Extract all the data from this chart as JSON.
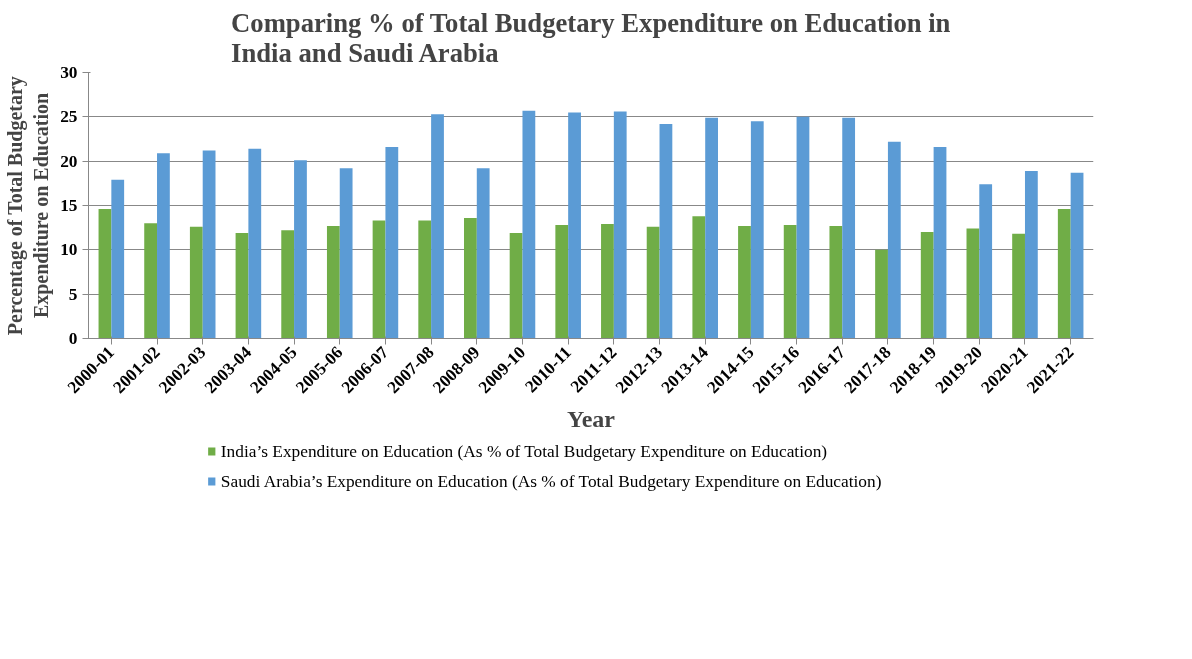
{
  "chart_data": {
    "type": "bar",
    "title": "Comparing % of Total Budgetary Expenditure on Education in India and Saudi Arabia",
    "xlabel": "Year",
    "ylabel": "Percentage of Total Budgetary Expenditure on Education",
    "categories": [
      "2000-01",
      "2001-02",
      "2002-03",
      "2003-04",
      "2004-05",
      "2005-06",
      "2006-07",
      "2007-08",
      "2008-09",
      "2009-10",
      "2010-11",
      "2011-12",
      "2012-13",
      "2013-14",
      "2014-15",
      "2015-16",
      "2016-17",
      "2017-18",
      "2018-19",
      "2019-20",
      "2020-21",
      "2021-22"
    ],
    "series": [
      {
        "name": "India’s Expenditure on Education (As % of Total Budgetary Expenditure on Education)",
        "color": "#70ad47",
        "values": [
          14.6,
          13.0,
          12.6,
          11.9,
          12.2,
          12.7,
          13.3,
          13.3,
          13.6,
          11.9,
          12.8,
          12.9,
          12.6,
          13.8,
          12.7,
          12.8,
          12.7,
          10.0,
          12.0,
          12.4,
          11.8,
          14.6
        ]
      },
      {
        "name": "Saudi Arabia’s Expenditure on Education (As % of Total Budgetary Expenditure on Education)",
        "color": "#5b9bd5",
        "values": [
          17.9,
          20.9,
          21.2,
          21.4,
          20.1,
          19.2,
          21.6,
          25.3,
          19.2,
          25.7,
          25.5,
          25.6,
          24.2,
          24.9,
          24.5,
          25.0,
          24.9,
          22.2,
          21.6,
          17.4,
          18.9,
          18.7
        ]
      }
    ],
    "ylim": [
      0,
      30
    ],
    "yticks": [
      0,
      5,
      10,
      15,
      20,
      25,
      30
    ],
    "grid": "y",
    "legend": "bottom"
  }
}
